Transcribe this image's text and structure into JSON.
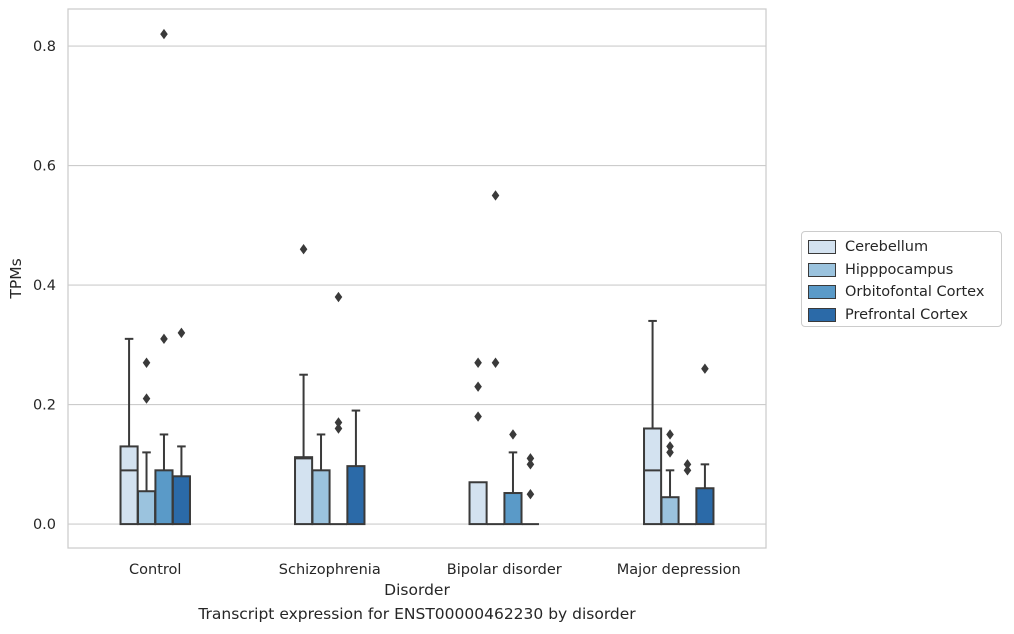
{
  "chart_data": {
    "type": "box",
    "title": "",
    "caption": "Transcript expression for ENST00000462230 by disorder",
    "xlabel": "Disorder",
    "ylabel": "TPMs",
    "ylim": [
      -0.04,
      0.862
    ],
    "yticks": [
      "0.0",
      "0.2",
      "0.4",
      "0.6",
      "0.8"
    ],
    "ytick_values": [
      0,
      0.2,
      0.4,
      0.6,
      0.8
    ],
    "grid": "horizontal",
    "legend_position": "right",
    "categories": [
      "Control",
      "Schizophrenia",
      "Bipolar disorder",
      "Major depression"
    ],
    "series": [
      {
        "name": "Cerebellum",
        "color": "#d3e2f0",
        "boxes": [
          {
            "q1": 0,
            "median": 0.09,
            "q3": 0.13,
            "whisker_low": 0,
            "whisker_high": 0.31,
            "outliers": []
          },
          {
            "q1": 0,
            "median": 0.11,
            "q3": 0.112,
            "whisker_low": 0,
            "whisker_high": 0.25,
            "outliers": [
              0.46
            ]
          },
          {
            "q1": 0,
            "median": 0,
            "q3": 0.07,
            "whisker_low": 0,
            "whisker_high": 0.07,
            "outliers": [
              0.18,
              0.23,
              0.27
            ]
          },
          {
            "q1": 0,
            "median": 0.09,
            "q3": 0.16,
            "whisker_low": 0,
            "whisker_high": 0.34,
            "outliers": []
          }
        ]
      },
      {
        "name": "Hipppocampus",
        "color": "#9bc3de",
        "boxes": [
          {
            "q1": 0,
            "median": 0.055,
            "q3": 0.055,
            "whisker_low": 0,
            "whisker_high": 0.12,
            "outliers": [
              0.21,
              0.27
            ]
          },
          {
            "q1": 0,
            "median": 0.09,
            "q3": 0.09,
            "whisker_low": 0,
            "whisker_high": 0.15,
            "outliers": []
          },
          {
            "q1": 0,
            "median": 0,
            "q3": 0,
            "whisker_low": 0,
            "whisker_high": 0,
            "outliers": [
              0.27,
              0.55
            ]
          },
          {
            "q1": 0,
            "median": 0.045,
            "q3": 0.045,
            "whisker_low": 0,
            "whisker_high": 0.09,
            "outliers": [
              0.12,
              0.13,
              0.15
            ]
          }
        ]
      },
      {
        "name": "Orbitofontal Cortex",
        "color": "#5a9ac8",
        "boxes": [
          {
            "q1": 0,
            "median": 0.09,
            "q3": 0.09,
            "whisker_low": 0,
            "whisker_high": 0.15,
            "outliers": [
              0.31,
              0.82
            ]
          },
          {
            "q1": 0,
            "median": 0,
            "q3": 0,
            "whisker_low": 0,
            "whisker_high": 0,
            "outliers": [
              0.16,
              0.17,
              0.38
            ]
          },
          {
            "q1": 0,
            "median": 0.052,
            "q3": 0.052,
            "whisker_low": 0,
            "whisker_high": 0.12,
            "outliers": [
              0.15
            ]
          },
          {
            "q1": 0,
            "median": 0,
            "q3": 0,
            "whisker_low": 0,
            "whisker_high": 0,
            "outliers": [
              0.09,
              0.1
            ]
          }
        ]
      },
      {
        "name": "Prefrontal Cortex",
        "color": "#2b6aa8",
        "boxes": [
          {
            "q1": 0,
            "median": 0.08,
            "q3": 0.08,
            "whisker_low": 0,
            "whisker_high": 0.13,
            "outliers": [
              0.32
            ]
          },
          {
            "q1": 0,
            "median": 0.097,
            "q3": 0.097,
            "whisker_low": 0,
            "whisker_high": 0.19,
            "outliers": []
          },
          {
            "q1": 0,
            "median": 0,
            "q3": 0,
            "whisker_low": 0,
            "whisker_high": 0,
            "outliers": [
              0.05,
              0.1,
              0.11
            ]
          },
          {
            "q1": 0,
            "median": 0.06,
            "q3": 0.06,
            "whisker_low": 0,
            "whisker_high": 0.1,
            "outliers": [
              0.26
            ]
          }
        ]
      }
    ]
  }
}
